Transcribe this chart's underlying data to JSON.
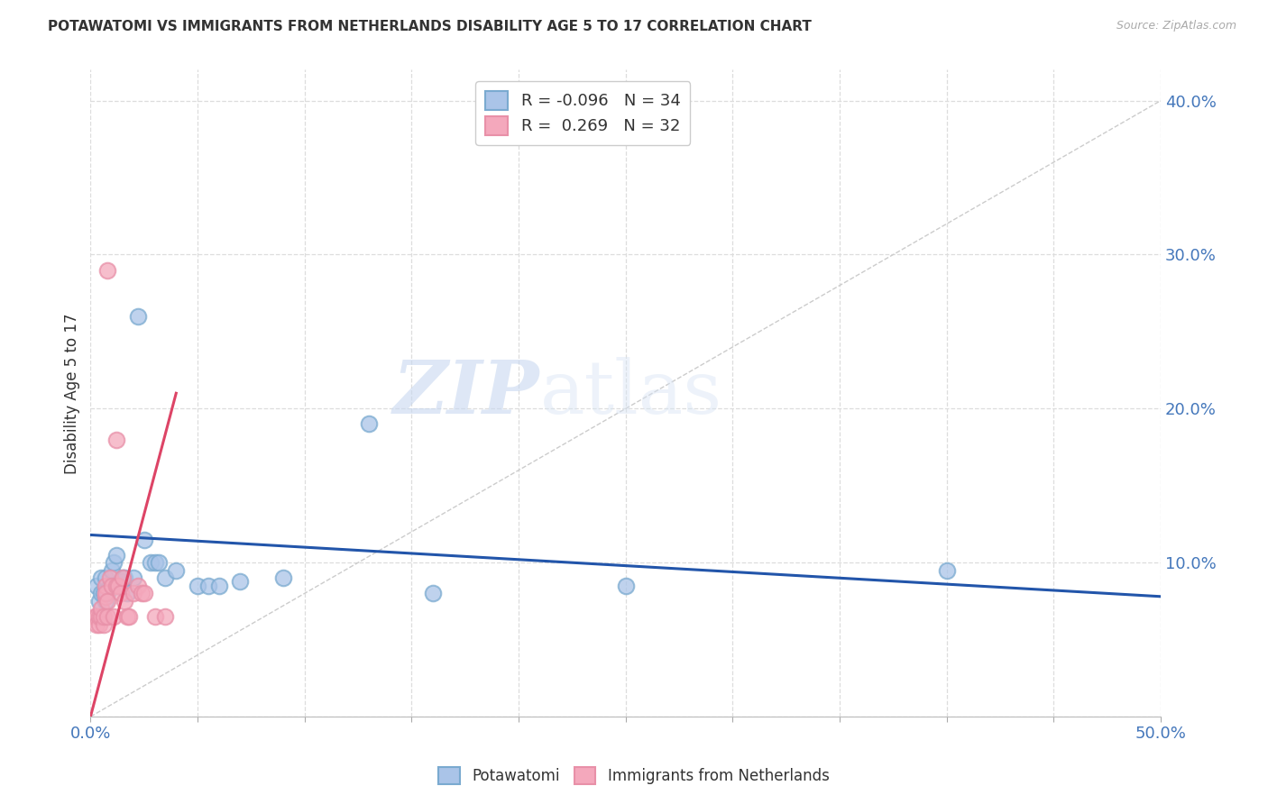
{
  "title": "POTAWATOMI VS IMMIGRANTS FROM NETHERLANDS DISABILITY AGE 5 TO 17 CORRELATION CHART",
  "source": "Source: ZipAtlas.com",
  "ylabel": "Disability Age 5 to 17",
  "xlim": [
    0.0,
    0.5
  ],
  "ylim": [
    0.0,
    0.42
  ],
  "blue_R": -0.096,
  "blue_N": 34,
  "pink_R": 0.269,
  "pink_N": 32,
  "blue_fill": "#aac4e8",
  "pink_fill": "#f4a8bc",
  "blue_edge": "#7aaad0",
  "pink_edge": "#e890a8",
  "blue_line_color": "#2255aa",
  "pink_line_color": "#dd4466",
  "ref_line_color": "#cccccc",
  "background_color": "#ffffff",
  "watermark_zip": "ZIP",
  "watermark_atlas": "atlas",
  "grid_color": "#dddddd",
  "potawatomi_x": [
    0.003,
    0.004,
    0.005,
    0.005,
    0.006,
    0.007,
    0.007,
    0.008,
    0.009,
    0.01,
    0.011,
    0.012,
    0.013,
    0.014,
    0.015,
    0.016,
    0.017,
    0.02,
    0.022,
    0.025,
    0.028,
    0.03,
    0.032,
    0.035,
    0.04,
    0.05,
    0.055,
    0.06,
    0.07,
    0.09,
    0.13,
    0.16,
    0.25,
    0.4
  ],
  "potawatomi_y": [
    0.085,
    0.075,
    0.09,
    0.08,
    0.08,
    0.075,
    0.09,
    0.08,
    0.085,
    0.095,
    0.1,
    0.105,
    0.085,
    0.088,
    0.09,
    0.09,
    0.08,
    0.09,
    0.26,
    0.115,
    0.1,
    0.1,
    0.1,
    0.09,
    0.095,
    0.085,
    0.085,
    0.085,
    0.088,
    0.09,
    0.19,
    0.08,
    0.085,
    0.095
  ],
  "netherlands_x": [
    0.002,
    0.003,
    0.003,
    0.004,
    0.004,
    0.005,
    0.005,
    0.006,
    0.006,
    0.007,
    0.007,
    0.007,
    0.008,
    0.008,
    0.008,
    0.009,
    0.01,
    0.011,
    0.012,
    0.012,
    0.013,
    0.014,
    0.015,
    0.016,
    0.017,
    0.018,
    0.02,
    0.022,
    0.024,
    0.025,
    0.03,
    0.035
  ],
  "netherlands_y": [
    0.065,
    0.065,
    0.06,
    0.06,
    0.065,
    0.065,
    0.07,
    0.06,
    0.065,
    0.078,
    0.085,
    0.08,
    0.075,
    0.29,
    0.065,
    0.09,
    0.085,
    0.065,
    0.18,
    0.085,
    0.085,
    0.08,
    0.09,
    0.075,
    0.065,
    0.065,
    0.08,
    0.085,
    0.08,
    0.08,
    0.065,
    0.065
  ],
  "blue_line_x0": 0.0,
  "blue_line_y0": 0.118,
  "blue_line_x1": 0.5,
  "blue_line_y1": 0.078,
  "pink_line_x0": 0.0,
  "pink_line_y0": 0.0,
  "pink_line_x1": 0.04,
  "pink_line_y1": 0.21
}
